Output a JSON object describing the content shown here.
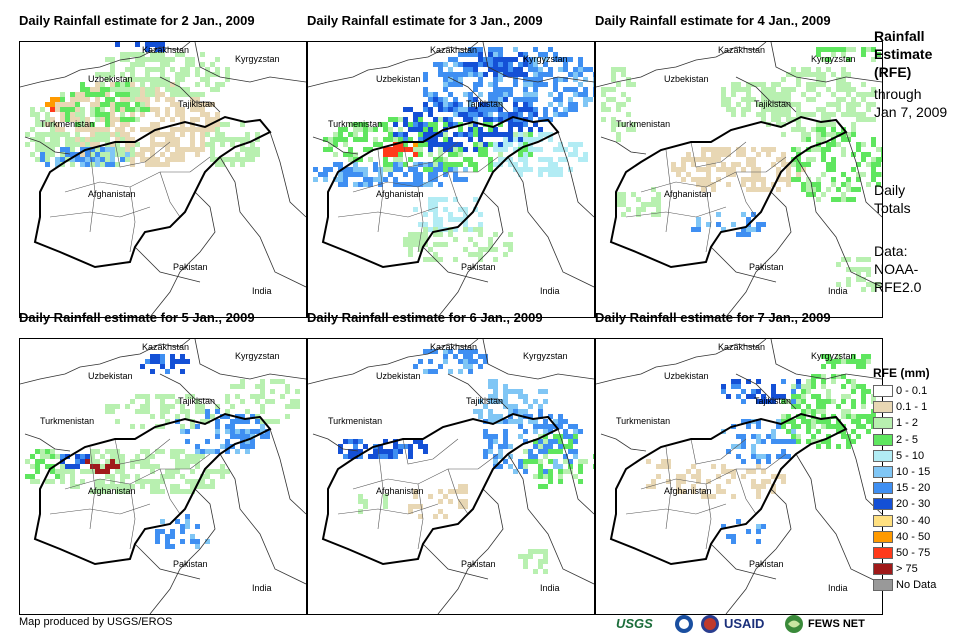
{
  "panels": [
    {
      "title": "Daily Rainfall estimate for 2 Jan., 2009",
      "day": "2"
    },
    {
      "title": "Daily Rainfall estimate for 3 Jan., 2009",
      "day": "3"
    },
    {
      "title": "Daily Rainfall estimate for 4 Jan., 2009",
      "day": "4"
    },
    {
      "title": "Daily Rainfall estimate for 5 Jan., 2009",
      "day": "5"
    },
    {
      "title": "Daily Rainfall estimate for 6 Jan., 2009",
      "day": "6"
    },
    {
      "title": "Daily Rainfall estimate for 7 Jan., 2009",
      "day": "7"
    }
  ],
  "map_labels": {
    "kazakhstan": "Kazakhstan",
    "kyrgyzstan": "Kyrgyzstan",
    "uzbekistan": "Uzbekistan",
    "tajikistan": "Tajikistan",
    "turkmenistan": "Turkmenistan",
    "afghanistan": "Afghanistan",
    "pakistan": "Pakistan",
    "india": "India"
  },
  "side_info": {
    "heading_line1": "Rainfall",
    "heading_line2": "Estimate",
    "heading_line3": "(RFE)",
    "through_line1": "through",
    "through_line2": "Jan 7, 2009",
    "totals_line1": "Daily",
    "totals_line2": "Totals",
    "data_line1": "Data:",
    "data_line2": "NOAA-",
    "data_line3": "RFE2.0"
  },
  "legend": {
    "title": "RFE (mm)",
    "items": [
      {
        "label": "0 - 0.1",
        "color": "#ffffff"
      },
      {
        "label": "0.1 - 1",
        "color": "#e8d7b4"
      },
      {
        "label": "1 - 2",
        "color": "#b8f0b0"
      },
      {
        "label": "2 - 5",
        "color": "#5fe65f"
      },
      {
        "label": "5 - 10",
        "color": "#b2ecf4"
      },
      {
        "label": "10 - 15",
        "color": "#80c6f5"
      },
      {
        "label": "15 - 20",
        "color": "#3f8ff2"
      },
      {
        "label": "20 - 30",
        "color": "#1450d6"
      },
      {
        "label": "30 - 40",
        "color": "#ffe080"
      },
      {
        "label": "40 - 50",
        "color": "#ff9a00"
      },
      {
        "label": "50 - 75",
        "color": "#ff3a1a"
      },
      {
        "label": "> 75",
        "color": "#a01a1a"
      },
      {
        "label": "No Data",
        "color": "#999999"
      }
    ]
  },
  "footer": {
    "credit": "Map produced by USGS/EROS",
    "logo_usgs": "USGS",
    "logo_usaid": "USAID",
    "logo_fews": "FEWS NET"
  }
}
